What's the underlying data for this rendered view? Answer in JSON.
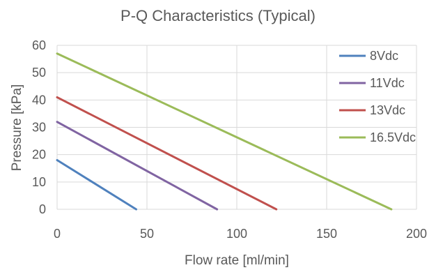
{
  "chart_data": {
    "type": "line",
    "title": "P-Q Characteristics (Typical)",
    "xlabel": "Flow rate [ml/min]",
    "ylabel": "Pressure [kPa]",
    "xlim": [
      0,
      200
    ],
    "ylim": [
      0,
      60
    ],
    "xticks": [
      0,
      50,
      100,
      150,
      200
    ],
    "yticks": [
      0,
      10,
      20,
      30,
      40,
      50,
      60
    ],
    "grid": true,
    "legend_position": "right",
    "series": [
      {
        "name": "8Vdc",
        "color": "#4f81bd",
        "x": [
          0,
          44
        ],
        "y": [
          18,
          0
        ]
      },
      {
        "name": "11Vdc",
        "color": "#8064a2",
        "x": [
          0,
          89
        ],
        "y": [
          32,
          0
        ]
      },
      {
        "name": "13Vdc",
        "color": "#c0504d",
        "x": [
          0,
          122
        ],
        "y": [
          41,
          0
        ]
      },
      {
        "name": "16.5Vdc",
        "color": "#9bbb59",
        "x": [
          0,
          186
        ],
        "y": [
          57,
          0
        ]
      }
    ]
  }
}
